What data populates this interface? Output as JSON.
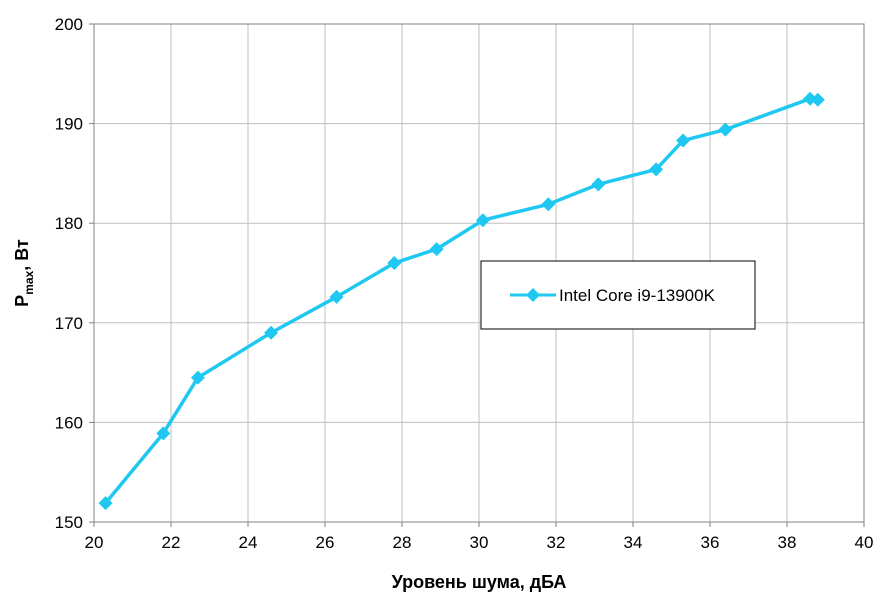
{
  "chart_data": {
    "type": "line",
    "xlabel": "Уровень шума, дБА",
    "ylabel": {
      "main": "P",
      "subscript": "max",
      "rest": ", Вт"
    },
    "xlim": [
      20,
      40
    ],
    "ylim": [
      150,
      200
    ],
    "xticks": [
      20,
      22,
      24,
      26,
      28,
      30,
      32,
      34,
      36,
      38,
      40
    ],
    "yticks": [
      150,
      160,
      170,
      180,
      190,
      200
    ],
    "grid": true,
    "legend_position": "center-right",
    "series": [
      {
        "name": "Intel Core i9-13900K",
        "color": "#1ec8f0",
        "marker": "diamond",
        "x": [
          20.3,
          21.8,
          22.7,
          24.6,
          26.3,
          27.8,
          28.9,
          30.1,
          31.8,
          33.1,
          34.6,
          35.3,
          36.4,
          38.6,
          38.8
        ],
        "y": [
          151.9,
          158.9,
          164.5,
          169.0,
          172.6,
          176.0,
          177.4,
          180.3,
          181.9,
          183.9,
          185.4,
          188.3,
          189.4,
          192.5,
          192.4
        ]
      }
    ]
  }
}
